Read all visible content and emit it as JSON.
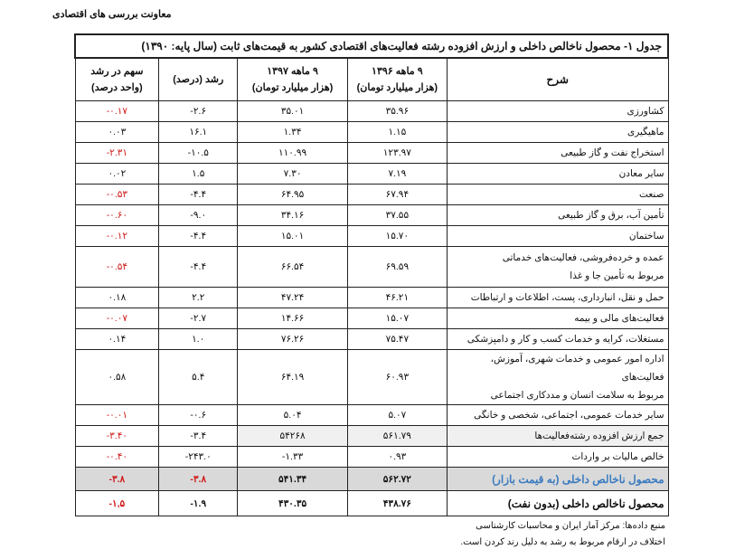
{
  "header": {
    "org": "معاونت بررسی های اقتصادی"
  },
  "table": {
    "title": "جدول ۱- محصول ناخالص داخلی و ارزش افزوده رشته فعالیت‌های اقتصادی کشور به قیمت‌های ثابت (سال پایه: ۱۳۹۰)",
    "columns": [
      {
        "l1": "شرح",
        "l2": ""
      },
      {
        "l1": "۹ ماهه ۱۳۹۶",
        "l2": "(هزار میلیارد تومان)"
      },
      {
        "l1": "۹ ماهه ۱۳۹۷",
        "l2": "(هزار میلیارد تومان)"
      },
      {
        "l1": "رشد (درصد)",
        "l2": ""
      },
      {
        "l1": "سهم در رشد",
        "l2": "(واحد درصد)"
      }
    ],
    "rows": [
      {
        "desc": "کشاورزی",
        "v96": "۳۵.۹۶",
        "v97": "۳۵.۰۱",
        "growth": "-۲.۶",
        "share": "-۰.۱۷"
      },
      {
        "desc": "ماهیگیری",
        "v96": "۱.۱۵",
        "v97": "۱.۳۴",
        "growth": "۱۶.۱",
        "share": "۰.۰۳"
      },
      {
        "desc": "استخراج نفت و گاز طبیعی",
        "v96": "۱۲۳.۹۷",
        "v97": "۱۱۰.۹۹",
        "growth": "-۱۰.۵",
        "share": "-۲.۳۱"
      },
      {
        "desc": "سایر معادن",
        "v96": "۷.۱۹",
        "v97": "۷.۳۰",
        "growth": "۱.۵",
        "share": "۰.۰۲"
      },
      {
        "desc": "صنعت",
        "v96": "۶۷.۹۴",
        "v97": "۶۴.۹۵",
        "growth": "-۴.۴",
        "share": "-۰.۵۳"
      },
      {
        "desc": "تأمین آب، برق و گاز طبیعی",
        "v96": "۳۷.۵۵",
        "v97": "۳۴.۱۶",
        "growth": "-۹.۰",
        "share": "-۰.۶۰"
      },
      {
        "desc": "ساختمان",
        "v96": "۱۵.۷۰",
        "v97": "۱۵.۰۱",
        "growth": "-۴.۴",
        "share": "-۰.۱۲"
      },
      {
        "desc": "عمده و خرده‌فروشی، فعالیت‌های خدماتی",
        "desc2": "مربوط به تأمین جا و غذا",
        "v96": "۶۹.۵۹",
        "v97": "۶۶.۵۴",
        "growth": "-۴.۴",
        "share": "-۰.۵۴"
      },
      {
        "desc": "حمل و نقل، انبارداری، پست، اطلاعات و ارتباطات",
        "v96": "۴۶.۲۱",
        "v97": "۴۷.۲۴",
        "growth": "۲.۲",
        "share": "۰.۱۸"
      },
      {
        "desc": "فعالیت‌های مالی و بیمه",
        "v96": "۱۵.۰۷",
        "v97": "۱۴.۶۶",
        "growth": "-۲.۷",
        "share": "-۰.۰۷"
      },
      {
        "desc": "مستغلات، کرایه و خدمات کسب و کار و دامپزشکی",
        "v96": "۷۵.۴۷",
        "v97": "۷۶.۲۶",
        "growth": "۱.۰",
        "share": "۰.۱۴"
      },
      {
        "desc": "اداره امور عمومی و خدمات شهری، آموزش، فعالیت‌های",
        "desc2": "مربوط به سلامت انسان و مددکاری اجتماعی",
        "v96": "۶۰.۹۳",
        "v97": "۶۴.۱۹",
        "growth": "۵.۴",
        "share": "۰.۵۸"
      },
      {
        "desc": "سایر خدمات عمومی، اجتماعی، شخصی و خانگی",
        "v96": "۵.۰۷",
        "v97": "۵.۰۴",
        "growth": "-۰.۶",
        "share": "-۰.۰۱"
      },
      {
        "desc": "جمع ارزش افزوده رشته‌فعالیت‌ها",
        "v96": "۵۶۱.۷۹",
        "v97": "۵۴۲۶۸",
        "growth": "-۳.۴",
        "share": "-۳.۴۰"
      },
      {
        "desc": "خالص مالیات بر واردات",
        "v96": "۰.۹۳",
        "v97": "-۱.۳۳",
        "growth": "-۲۴۳.۰",
        "share": "-۰.۴۰"
      },
      {
        "desc": "محصول ناخالص داخلی (به قیمت بازار)",
        "v96": "۵۶۲.۷۲",
        "v97": "۵۴۱.۳۴",
        "growth": "-۳.۸",
        "share": "-۳.۸"
      },
      {
        "desc": "محصول ناخالص داخلی (بدون نفت)",
        "v96": "۴۳۸.۷۶",
        "v97": "۴۳۰.۳۵",
        "growth": "-۱.۹",
        "share": "-۱,۵"
      }
    ]
  },
  "footnotes": [
    "منبع داده‌ها: مرکز آمار ایران و محاسبات کارشناسی",
    "اختلاف در ارقام مربوط به رشد به دلیل رند کردن است."
  ],
  "colors": {
    "negative": "#d01818",
    "gdp_label": "#3b7bc0",
    "gdp_row_bg": "#d9d9d9"
  }
}
